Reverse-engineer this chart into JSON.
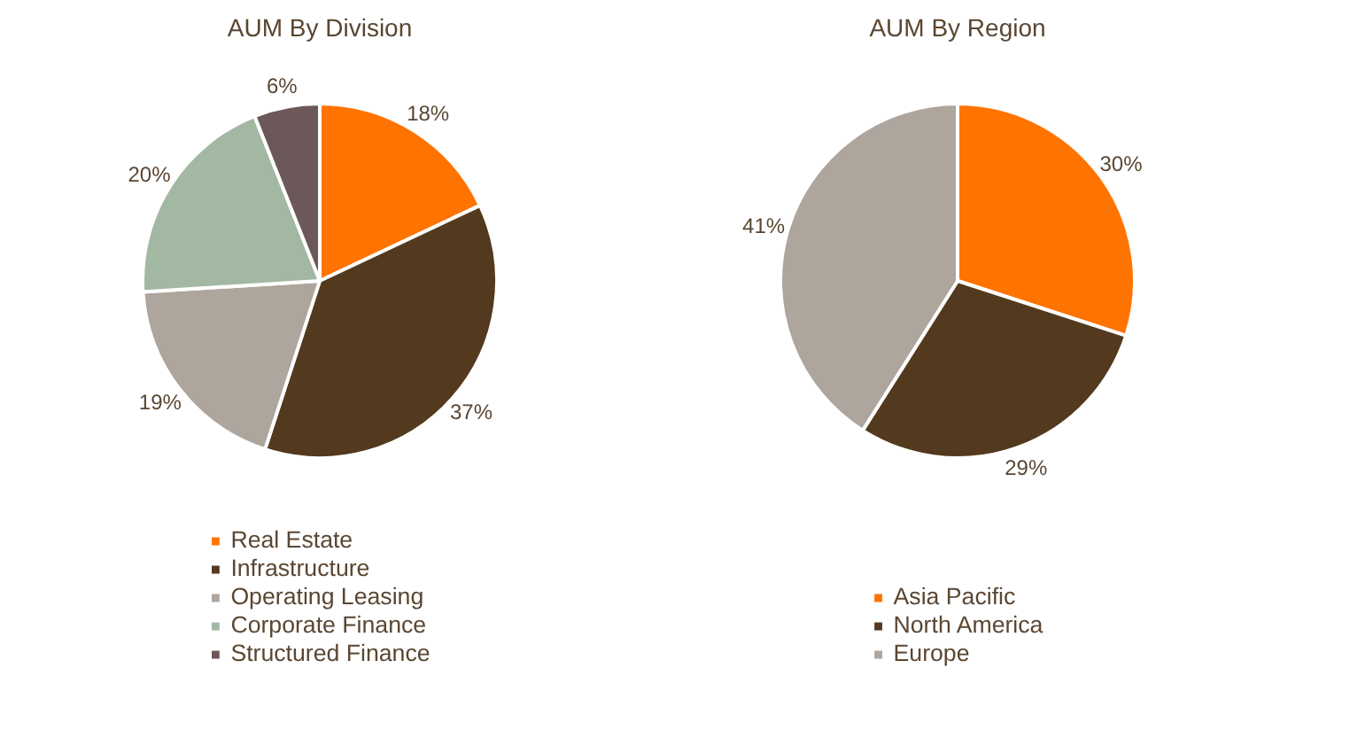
{
  "chart_data": [
    {
      "type": "pie",
      "title": "AUM By Division",
      "categories": [
        "Real Estate",
        "Infrastructure",
        "Operating Leasing",
        "Corporate Finance",
        "Structured Finance"
      ],
      "values": [
        18,
        37,
        19,
        20,
        6
      ],
      "value_labels": [
        "18%",
        "37%",
        "19%",
        "20%",
        "6%"
      ],
      "colors": [
        "#ff7300",
        "#533a1e",
        "#aea59d",
        "#a3b8a3",
        "#6c5858"
      ],
      "legend": "bottom"
    },
    {
      "type": "pie",
      "title": "AUM By Region",
      "categories": [
        "Asia Pacific",
        "North America",
        "Europe"
      ],
      "values": [
        30,
        29,
        41
      ],
      "value_labels": [
        "30%",
        "29%",
        "41%"
      ],
      "colors": [
        "#ff7300",
        "#533a1e",
        "#aea59d"
      ],
      "legend": "bottom"
    }
  ]
}
